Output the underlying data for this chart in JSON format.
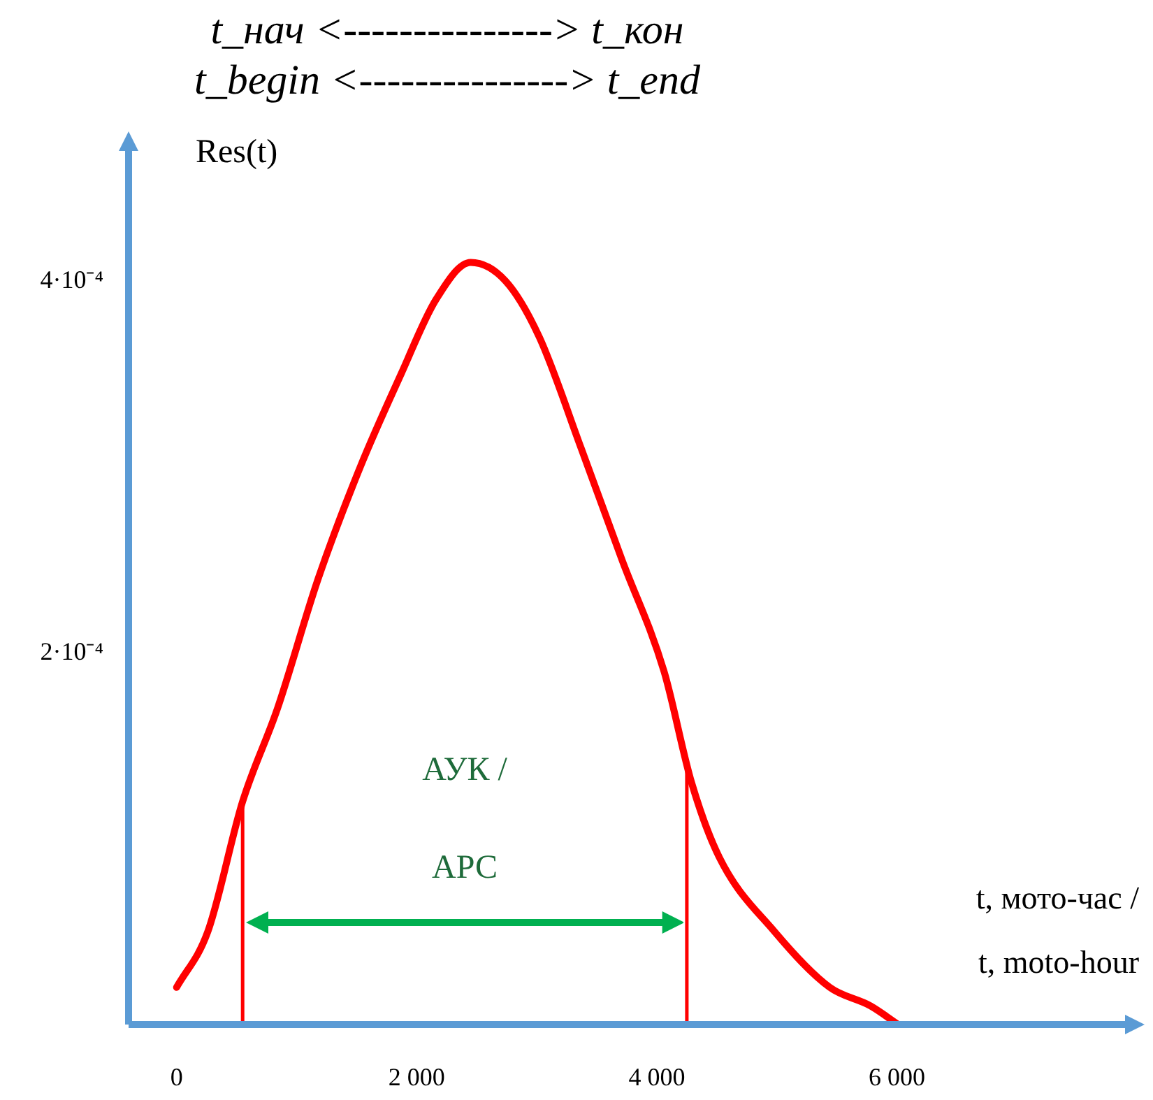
{
  "chart_data": {
    "type": "line",
    "title": "t_нач <---------------> t_кон",
    "subtitle": "t_begin <---------------> t_end",
    "ylabel": "Res(t)",
    "xlabel": "t, мото-час / t, moto-hour",
    "annotations": [
      "АУК / АРС"
    ],
    "x": [
      0,
      260,
      550,
      840,
      1180,
      1530,
      1870,
      2160,
      2450,
      2740,
      3020,
      3370,
      3710,
      4060,
      4290,
      4520,
      4980,
      5440,
      5780,
      6010
    ],
    "series": [
      {
        "color": "#ff0000",
        "values": [
          2e-05,
          5e-05,
          0.00012,
          0.00017,
          0.00024,
          0.0003,
          0.00035,
          0.00039,
          0.00041,
          0.0004,
          0.00037,
          0.00031,
          0.00025,
          0.00019,
          0.00013,
          9e-05,
          5e-05,
          2e-05,
          1e-05,
          0
        ]
      }
    ],
    "xlim": [
      -400,
      7900
    ],
    "ylim": [
      0,
      0.00047
    ],
    "xticks": [
      0,
      {
        "value": 2000,
        "label": "2 000"
      },
      {
        "value": 4000,
        "label": "4 000"
      },
      {
        "value": 6000,
        "label": "6 000"
      }
    ],
    "yticks": [
      {
        "value": 0.0002,
        "label": "2·10⁻⁴"
      },
      {
        "value": 0.0004,
        "label": "4·10⁻⁴"
      }
    ],
    "ref_lines": [
      {
        "axis": "x",
        "value": 550,
        "color": "#ff0000"
      },
      {
        "axis": "x",
        "value": 4250,
        "color": "#ff0000"
      }
    ],
    "grid": false,
    "legend": false,
    "marker": "none",
    "line_style": "solid"
  }
}
